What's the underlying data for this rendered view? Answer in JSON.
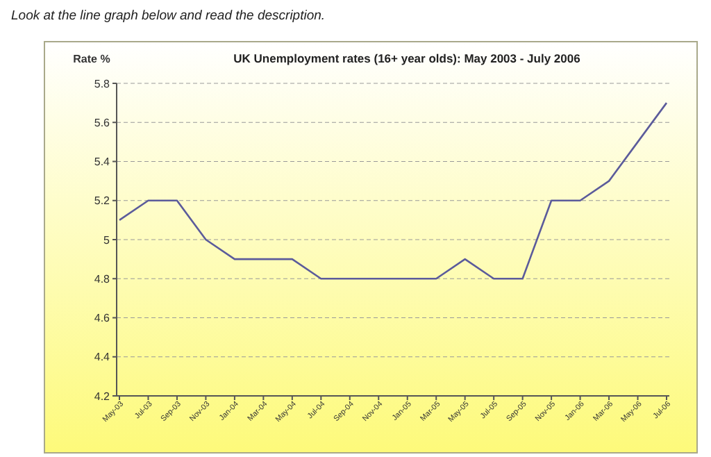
{
  "chart_data": {
    "type": "line",
    "title": "UK Unemployment rates (16+ year olds): May 2003 - July 2006",
    "ylabel": "Rate %",
    "annotations": [
      "Look at the line graph below and read the description."
    ],
    "categories": [
      "May-03",
      "Jul-03",
      "Sep-03",
      "Nov-03",
      "Jan-04",
      "Mar-04",
      "May-04",
      "Jul-04",
      "Sep-04",
      "Nov-04",
      "Jan-05",
      "Mar-05",
      "May-05",
      "Jul-05",
      "Sep-05",
      "Nov-05",
      "Jan-06",
      "Mar-06",
      "May-06",
      "Jul-06"
    ],
    "series": [
      {
        "color": "#5b5b9b",
        "values": [
          5.1,
          5.2,
          5.2,
          5.0,
          4.9,
          4.9,
          4.9,
          4.8,
          4.8,
          4.8,
          4.8,
          4.8,
          4.9,
          4.8,
          4.8,
          5.2,
          5.2,
          5.3,
          5.5,
          5.7
        ]
      }
    ],
    "ylim": [
      4.2,
      5.8
    ],
    "yticks": [
      4.2,
      4.4,
      4.6,
      4.8,
      5,
      5.2,
      5.4,
      5.6,
      5.8
    ],
    "grid": "y",
    "marker": "none",
    "line_style": "solid"
  }
}
